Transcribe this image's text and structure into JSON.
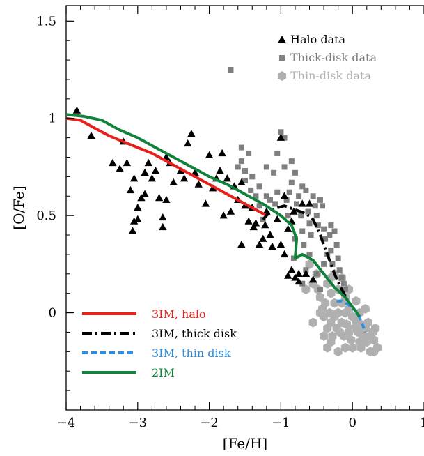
{
  "chart_data": {
    "type": "scatter",
    "xlabel": "[Fe/H]",
    "ylabel": "[O/Fe]",
    "xlim": [
      -4,
      1
    ],
    "ylim": [
      -0.5,
      1.58
    ],
    "x_ticks": [
      "−4",
      "−3",
      "−2",
      "−1",
      "0",
      "1"
    ],
    "y_ticks": [
      "0",
      "0.5",
      "1",
      "1.5"
    ],
    "scatter_series": [
      {
        "name": "Halo data",
        "marker": "triangle",
        "color": "#000000",
        "points": [
          [
            -3.85,
            1.04
          ],
          [
            -3.65,
            0.91
          ],
          [
            -3.35,
            0.77
          ],
          [
            -3.25,
            0.74
          ],
          [
            -3.15,
            0.77
          ],
          [
            -3.05,
            0.69
          ],
          [
            -3.2,
            0.88
          ],
          [
            -3.0,
            0.48
          ],
          [
            -3.0,
            0.54
          ],
          [
            -3.05,
            0.47
          ],
          [
            -3.1,
            0.63
          ],
          [
            -3.07,
            0.42
          ],
          [
            -2.95,
            0.59
          ],
          [
            -2.9,
            0.61
          ],
          [
            -2.85,
            0.77
          ],
          [
            -2.8,
            0.69
          ],
          [
            -2.75,
            0.73
          ],
          [
            -2.7,
            0.59
          ],
          [
            -2.65,
            0.49
          ],
          [
            -2.6,
            0.58
          ],
          [
            -2.6,
            0.8
          ],
          [
            -2.55,
            0.77
          ],
          [
            -2.65,
            0.44
          ],
          [
            -2.5,
            0.67
          ],
          [
            -2.4,
            0.73
          ],
          [
            -2.35,
            0.69
          ],
          [
            -2.3,
            0.87
          ],
          [
            -2.25,
            0.92
          ],
          [
            -2.2,
            0.72
          ],
          [
            -2.15,
            0.66
          ],
          [
            -2.05,
            0.56
          ],
          [
            -2.0,
            0.81
          ],
          [
            -1.95,
            0.64
          ],
          [
            -1.9,
            0.69
          ],
          [
            -1.85,
            0.73
          ],
          [
            -1.82,
            0.82
          ],
          [
            -1.75,
            0.69
          ],
          [
            -1.7,
            0.52
          ],
          [
            -1.65,
            0.65
          ],
          [
            -1.6,
            0.58
          ],
          [
            -1.55,
            0.67
          ],
          [
            -1.5,
            0.55
          ],
          [
            -1.45,
            0.47
          ],
          [
            -1.38,
            0.44
          ],
          [
            -1.3,
            0.35
          ],
          [
            -1.25,
            0.38
          ],
          [
            -1.22,
            0.45
          ],
          [
            -1.2,
            0.52
          ],
          [
            -1.35,
            0.46
          ],
          [
            -1.4,
            0.54
          ],
          [
            -1.55,
            0.35
          ],
          [
            -1.15,
            0.4
          ],
          [
            -1.12,
            0.34
          ],
          [
            -1.0,
            0.35
          ],
          [
            -0.95,
            0.6
          ],
          [
            -1.05,
            0.48
          ],
          [
            -0.9,
            0.43
          ],
          [
            -0.95,
            0.3
          ],
          [
            -0.85,
            0.47
          ],
          [
            -0.82,
            0.52
          ],
          [
            -0.7,
            0.56
          ],
          [
            -0.6,
            0.56
          ],
          [
            -0.85,
            0.22
          ],
          [
            -0.75,
            0.2
          ],
          [
            -0.75,
            0.16
          ],
          [
            -0.8,
            0.18
          ],
          [
            -0.9,
            0.19
          ],
          [
            -0.65,
            0.2
          ],
          [
            -0.55,
            0.17
          ],
          [
            -1.0,
            0.9
          ],
          [
            -1.8,
            0.5
          ],
          [
            -2.9,
            0.72
          ]
        ]
      },
      {
        "name": "Thick-disk data",
        "marker": "square",
        "color": "#7f7f7f",
        "points": [
          [
            -1.7,
            1.25
          ],
          [
            -1.6,
            0.75
          ],
          [
            -1.55,
            0.78
          ],
          [
            -1.45,
            0.82
          ],
          [
            -1.5,
            0.68
          ],
          [
            -1.5,
            0.73
          ],
          [
            -1.55,
            0.85
          ],
          [
            -1.42,
            0.63
          ],
          [
            -1.4,
            0.7
          ],
          [
            -1.3,
            0.65
          ],
          [
            -1.35,
            0.6
          ],
          [
            -1.3,
            0.55
          ],
          [
            -1.25,
            0.48
          ],
          [
            -1.2,
            0.6
          ],
          [
            -1.15,
            0.58
          ],
          [
            -1.1,
            0.72
          ],
          [
            -1.08,
            0.56
          ],
          [
            -1.05,
            0.62
          ],
          [
            -1.0,
            0.93
          ],
          [
            -0.95,
            0.9
          ],
          [
            -0.95,
            0.75
          ],
          [
            -0.92,
            0.58
          ],
          [
            -0.9,
            0.5
          ],
          [
            -0.88,
            0.62
          ],
          [
            -0.85,
            0.67
          ],
          [
            -0.8,
            0.72
          ],
          [
            -0.78,
            0.56
          ],
          [
            -0.75,
            0.6
          ],
          [
            -0.72,
            0.5
          ],
          [
            -0.7,
            0.42
          ],
          [
            -0.68,
            0.35
          ],
          [
            -0.65,
            0.63
          ],
          [
            -0.62,
            0.52
          ],
          [
            -0.6,
            0.46
          ],
          [
            -0.58,
            0.4
          ],
          [
            -0.55,
            0.6
          ],
          [
            -0.52,
            0.55
          ],
          [
            -0.5,
            0.5
          ],
          [
            -0.48,
            0.45
          ],
          [
            -0.45,
            0.58
          ],
          [
            -0.42,
            0.55
          ],
          [
            -0.4,
            0.43
          ],
          [
            -0.38,
            0.38
          ],
          [
            -0.35,
            0.3
          ],
          [
            -0.32,
            0.4
          ],
          [
            -0.3,
            0.32
          ],
          [
            -0.28,
            0.25
          ],
          [
            -0.25,
            0.42
          ],
          [
            -0.22,
            0.35
          ],
          [
            -0.2,
            0.28
          ],
          [
            -0.18,
            0.22
          ],
          [
            -0.15,
            0.18
          ],
          [
            -0.12,
            0.15
          ],
          [
            -0.1,
            0.12
          ],
          [
            -0.8,
            0.38
          ],
          [
            -0.82,
            0.28
          ],
          [
            -0.65,
            0.22
          ],
          [
            -0.7,
            0.15
          ],
          [
            -0.5,
            0.2
          ],
          [
            -0.45,
            0.12
          ],
          [
            -0.4,
            0.25
          ],
          [
            -1.2,
            0.75
          ],
          [
            -0.85,
            0.78
          ],
          [
            -1.05,
            0.82
          ],
          [
            -0.7,
            0.65
          ],
          [
            -0.6,
            0.3
          ],
          [
            -0.3,
            0.45
          ]
        ]
      },
      {
        "name": "Thin-disk data",
        "marker": "hexagon",
        "color": "#b0b0b0",
        "points": [
          [
            -0.5,
            0.2
          ],
          [
            -0.48,
            0.12
          ],
          [
            -0.45,
            0.08
          ],
          [
            -0.42,
            0.02
          ],
          [
            -0.4,
            -0.02
          ],
          [
            -0.38,
            0.05
          ],
          [
            -0.35,
            0.15
          ],
          [
            -0.35,
            -0.08
          ],
          [
            -0.32,
            0.0
          ],
          [
            -0.3,
            0.1
          ],
          [
            -0.3,
            -0.05
          ],
          [
            -0.28,
            -0.12
          ],
          [
            -0.25,
            0.05
          ],
          [
            -0.25,
            -0.02
          ],
          [
            -0.22,
            -0.08
          ],
          [
            -0.2,
            0.12
          ],
          [
            -0.2,
            0.0
          ],
          [
            -0.18,
            -0.1
          ],
          [
            -0.15,
            0.05
          ],
          [
            -0.15,
            -0.05
          ],
          [
            -0.12,
            -0.12
          ],
          [
            -0.1,
            0.08
          ],
          [
            -0.1,
            0.0
          ],
          [
            -0.08,
            -0.06
          ],
          [
            -0.05,
            -0.1
          ],
          [
            -0.05,
            0.02
          ],
          [
            -0.02,
            -0.14
          ],
          [
            0.0,
            -0.02
          ],
          [
            0.02,
            -0.08
          ],
          [
            0.05,
            -0.04
          ],
          [
            0.08,
            -0.1
          ],
          [
            0.1,
            -0.15
          ],
          [
            0.12,
            -0.06
          ],
          [
            0.15,
            -0.12
          ],
          [
            0.18,
            -0.08
          ],
          [
            0.2,
            -0.15
          ],
          [
            0.22,
            -0.05
          ],
          [
            0.25,
            -0.12
          ],
          [
            0.28,
            -0.1
          ],
          [
            0.3,
            -0.14
          ],
          [
            0.32,
            -0.08
          ],
          [
            0.35,
            -0.18
          ],
          [
            0.3,
            -0.2
          ],
          [
            -0.3,
            -0.15
          ],
          [
            -0.35,
            -0.18
          ],
          [
            -0.4,
            -0.12
          ],
          [
            -0.45,
            0.0
          ],
          [
            -0.55,
            0.15
          ],
          [
            -0.6,
            0.25
          ],
          [
            -0.65,
            0.12
          ],
          [
            -0.55,
            -0.05
          ],
          [
            -0.25,
            0.2
          ],
          [
            -0.15,
            0.18
          ],
          [
            -0.05,
            0.12
          ],
          [
            0.05,
            0.06
          ],
          [
            0.1,
            0.0
          ],
          [
            0.12,
            -0.18
          ],
          [
            -0.2,
            -0.2
          ],
          [
            0.25,
            -0.2
          ],
          [
            0.0,
            -0.18
          ],
          [
            -0.3,
            0.18
          ],
          [
            0.18,
            0.02
          ],
          [
            -0.1,
            -0.18
          ]
        ]
      }
    ],
    "line_series": [
      {
        "name": "3IM, halo",
        "color": "#e8201c",
        "dash": "",
        "points": [
          [
            -4.0,
            1.0
          ],
          [
            -3.8,
            0.99
          ],
          [
            -3.6,
            0.95
          ],
          [
            -3.4,
            0.91
          ],
          [
            -3.2,
            0.88
          ],
          [
            -3.0,
            0.85
          ],
          [
            -2.8,
            0.82
          ],
          [
            -2.6,
            0.78
          ],
          [
            -2.4,
            0.74
          ],
          [
            -2.2,
            0.7
          ],
          [
            -2.0,
            0.66
          ],
          [
            -1.8,
            0.62
          ],
          [
            -1.6,
            0.58
          ],
          [
            -1.4,
            0.54
          ],
          [
            -1.2,
            0.5
          ]
        ]
      },
      {
        "name": "3IM, thick disk",
        "color": "#000000",
        "dash": "14,5,3,5",
        "points": [
          [
            -1.25,
            0.48
          ],
          [
            -1.2,
            0.5
          ],
          [
            -1.15,
            0.52
          ],
          [
            -1.05,
            0.54
          ],
          [
            -0.95,
            0.55
          ],
          [
            -0.8,
            0.53
          ],
          [
            -0.65,
            0.51
          ],
          [
            -0.55,
            0.48
          ],
          [
            -0.45,
            0.4
          ],
          [
            -0.35,
            0.3
          ],
          [
            -0.25,
            0.2
          ],
          [
            -0.15,
            0.12
          ],
          [
            -0.05,
            0.05
          ]
        ]
      },
      {
        "name": "3IM, thin disk",
        "color": "#2e8ee0",
        "dash": "8,5",
        "points": [
          [
            -0.22,
            0.06
          ],
          [
            -0.15,
            0.06
          ],
          [
            -0.05,
            0.04
          ],
          [
            0.05,
            0.01
          ],
          [
            0.12,
            -0.04
          ],
          [
            0.18,
            -0.1
          ]
        ]
      },
      {
        "name": "2IM",
        "color": "#11823b",
        "dash": "",
        "points": [
          [
            -4.0,
            1.02
          ],
          [
            -3.75,
            1.01
          ],
          [
            -3.5,
            0.99
          ],
          [
            -3.25,
            0.94
          ],
          [
            -3.0,
            0.9
          ],
          [
            -2.75,
            0.85
          ],
          [
            -2.5,
            0.8
          ],
          [
            -2.25,
            0.75
          ],
          [
            -2.0,
            0.7
          ],
          [
            -1.75,
            0.66
          ],
          [
            -1.5,
            0.61
          ],
          [
            -1.25,
            0.56
          ],
          [
            -1.0,
            0.5
          ],
          [
            -0.85,
            0.45
          ],
          [
            -0.78,
            0.38
          ],
          [
            -0.8,
            0.28
          ],
          [
            -0.7,
            0.3
          ],
          [
            -0.55,
            0.27
          ],
          [
            -0.4,
            0.2
          ],
          [
            -0.25,
            0.13
          ],
          [
            -0.1,
            0.08
          ],
          [
            0.0,
            0.03
          ],
          [
            0.1,
            -0.02
          ]
        ]
      }
    ],
    "legend_top": [
      "Halo data",
      "Thick-disk data",
      "Thin-disk data"
    ],
    "legend_bottom": [
      "3IM, halo",
      "3IM, thick disk",
      "3IM, thin disk",
      "2IM"
    ]
  }
}
